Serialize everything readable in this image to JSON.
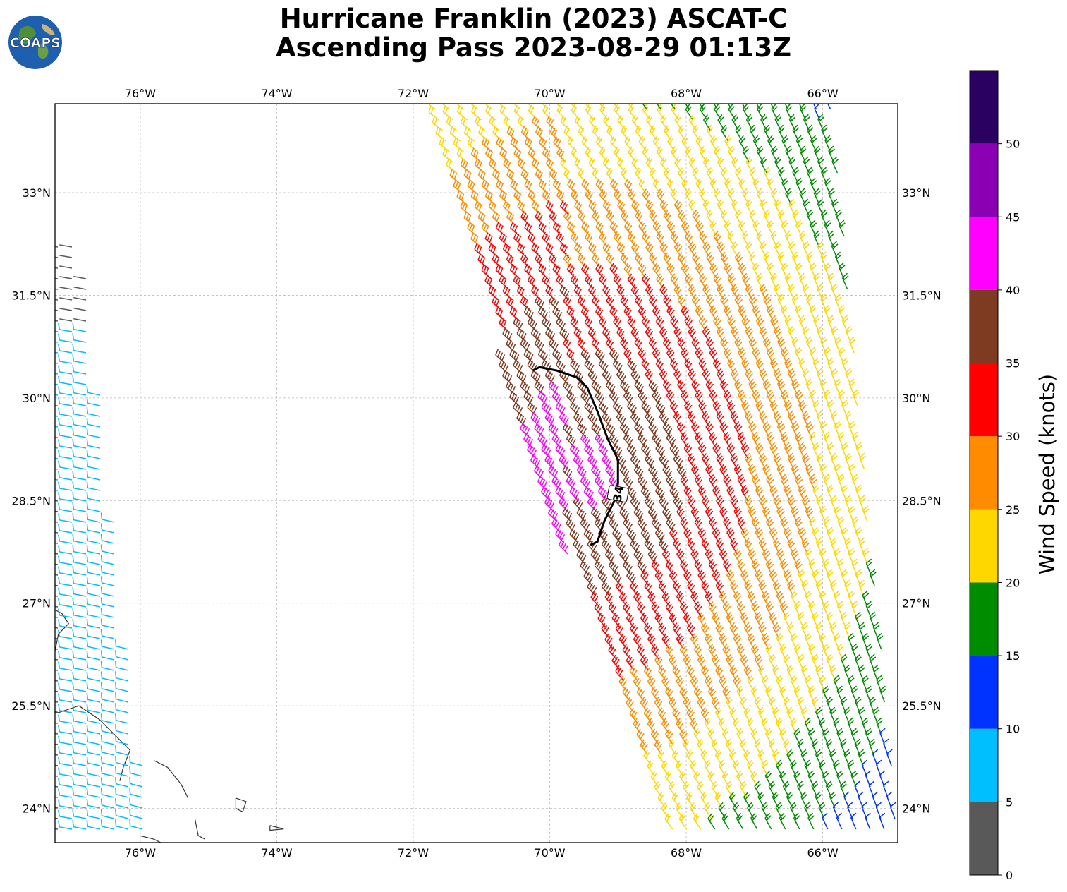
{
  "title": {
    "line1": "Hurricane Franklin (2023) ASCAT-C",
    "line2": "Ascending Pass 2023-08-29 01:13Z"
  },
  "logo": {
    "text": "COAPS",
    "icon": "globe-icon"
  },
  "map": {
    "lon_range": [
      -77.25,
      -64.9
    ],
    "lat_range": [
      23.5,
      34.3
    ],
    "lon_ticks": [
      {
        "value": -76,
        "label": "76°W"
      },
      {
        "value": -74,
        "label": "74°W"
      },
      {
        "value": -72,
        "label": "72°W"
      },
      {
        "value": -70,
        "label": "70°W"
      },
      {
        "value": -68,
        "label": "68°W"
      },
      {
        "value": -66,
        "label": "66°W"
      }
    ],
    "lat_ticks": [
      {
        "value": 33,
        "label": "33°N"
      },
      {
        "value": 31.5,
        "label": "31.5°N"
      },
      {
        "value": 30,
        "label": "30°N"
      },
      {
        "value": 28.5,
        "label": "28.5°N"
      },
      {
        "value": 27,
        "label": "27°N"
      },
      {
        "value": 25.5,
        "label": "25.5°N"
      },
      {
        "value": 24,
        "label": "24°N"
      }
    ],
    "contour_label": "34",
    "contour_34kt": [
      [
        -70.25,
        30.4
      ],
      [
        -70.15,
        30.45
      ],
      [
        -69.9,
        30.4
      ],
      [
        -69.6,
        30.3
      ],
      [
        -69.45,
        30.15
      ],
      [
        -69.3,
        29.8
      ],
      [
        -69.15,
        29.4
      ],
      [
        -69.0,
        29.1
      ],
      [
        -69.0,
        28.75
      ],
      [
        -69.05,
        28.5
      ],
      [
        -69.2,
        28.2
      ],
      [
        -69.3,
        27.9
      ],
      [
        -69.4,
        27.85
      ]
    ]
  },
  "colorbar": {
    "label": "Wind Speed (knots)",
    "tick_labels": [
      "0",
      "5",
      "10",
      "15",
      "20",
      "25",
      "30",
      "35",
      "40",
      "45",
      "50"
    ],
    "bins": [
      {
        "min": 0,
        "max": 5,
        "color": "#595959"
      },
      {
        "min": 5,
        "max": 10,
        "color": "#00bfff"
      },
      {
        "min": 10,
        "max": 15,
        "color": "#0033ff"
      },
      {
        "min": 15,
        "max": 20,
        "color": "#008c00"
      },
      {
        "min": 20,
        "max": 25,
        "color": "#ffd700"
      },
      {
        "min": 25,
        "max": 30,
        "color": "#ff8c00"
      },
      {
        "min": 30,
        "max": 35,
        "color": "#ff0000"
      },
      {
        "min": 35,
        "max": 40,
        "color": "#7f3a22"
      },
      {
        "min": 40,
        "max": 45,
        "color": "#ff00ff"
      },
      {
        "min": 45,
        "max": 50,
        "color": "#8b00b3"
      },
      {
        "min": 50,
        "max": 55,
        "color": "#2a0060"
      }
    ]
  }
}
